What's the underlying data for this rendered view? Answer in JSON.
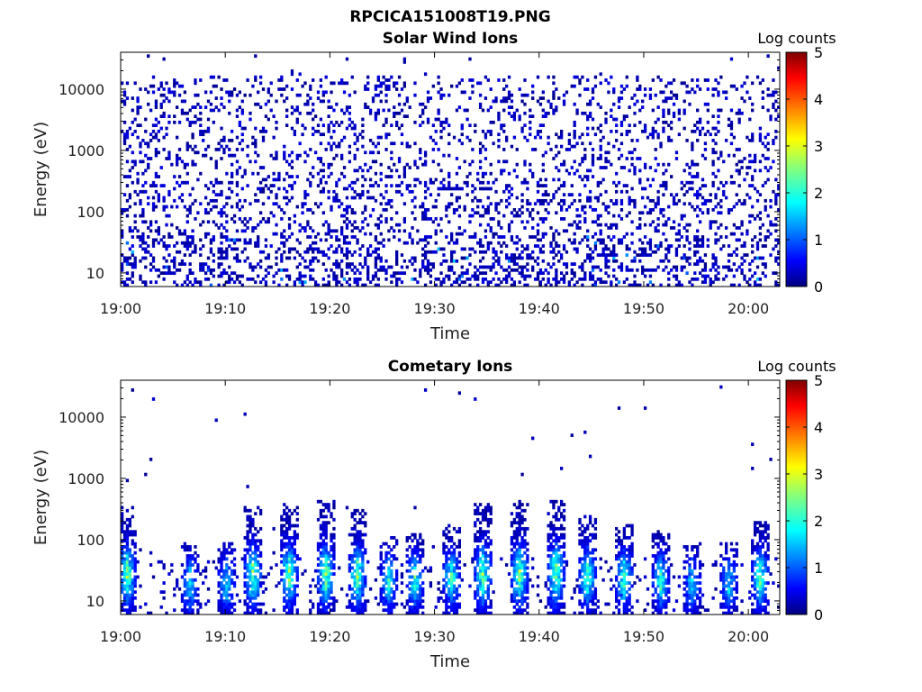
{
  "figure_title": "RPCICA151008T19.PNG",
  "chart_data": [
    {
      "type": "heatmap",
      "title": "Solar Wind Ions",
      "xlabel": "Time",
      "ylabel": "Energy (eV)",
      "x_range": [
        "19:00",
        "20:03"
      ],
      "x_ticks": [
        "19:00",
        "19:10",
        "19:20",
        "19:30",
        "19:40",
        "19:50",
        "20:00"
      ],
      "y_scale": "log",
      "ylim": [
        6,
        40000
      ],
      "y_ticks": [
        10,
        100,
        1000,
        10000
      ],
      "y_tick_labels": [
        "10",
        "100",
        "1000",
        "10000"
      ],
      "colorbar": {
        "label": "Log counts",
        "range": [
          0,
          5
        ],
        "ticks": [
          "0",
          "1",
          "2",
          "3",
          "4",
          "5"
        ],
        "colormap": "jet"
      },
      "grid": false,
      "pattern": "sparse low counts (log ≈ 0–0.5) scattered across all energies 6–15000 eV; denser columns below ~40 eV; a few log ≈ 1–1.5 pixels near 20–40 eV at 19:25, 19:41, 19:55, 20:02"
    },
    {
      "type": "heatmap",
      "title": "Cometary Ions",
      "xlabel": "Time",
      "ylabel": "Energy (eV)",
      "x_range": [
        "19:00",
        "20:03"
      ],
      "x_ticks": [
        "19:00",
        "19:10",
        "19:20",
        "19:30",
        "19:40",
        "19:50",
        "20:00"
      ],
      "y_scale": "log",
      "ylim": [
        6,
        40000
      ],
      "y_ticks": [
        10,
        100,
        1000,
        10000
      ],
      "y_tick_labels": [
        "10",
        "100",
        "1000",
        "10000"
      ],
      "colorbar": {
        "label": "Log counts",
        "range": [
          0,
          5
        ],
        "ticks": [
          "0",
          "1",
          "2",
          "3",
          "4",
          "5"
        ],
        "colormap": "jet"
      },
      "grid": false,
      "bursts_minutes": [
        0.5,
        6.5,
        10,
        12.5,
        16,
        19.5,
        22.5,
        25.5,
        28,
        31.5,
        34.5,
        38,
        41.5,
        44.5,
        48,
        51.5,
        54.5,
        58,
        61
      ],
      "burst_peak_log_counts": 2.5,
      "pattern": "periodic vertical bursts from ~6 eV up to ~200–500 eV every ~3 minutes, peak log counts ~2–2.5 near 20–50 eV; isolated single counts at higher energies"
    }
  ]
}
